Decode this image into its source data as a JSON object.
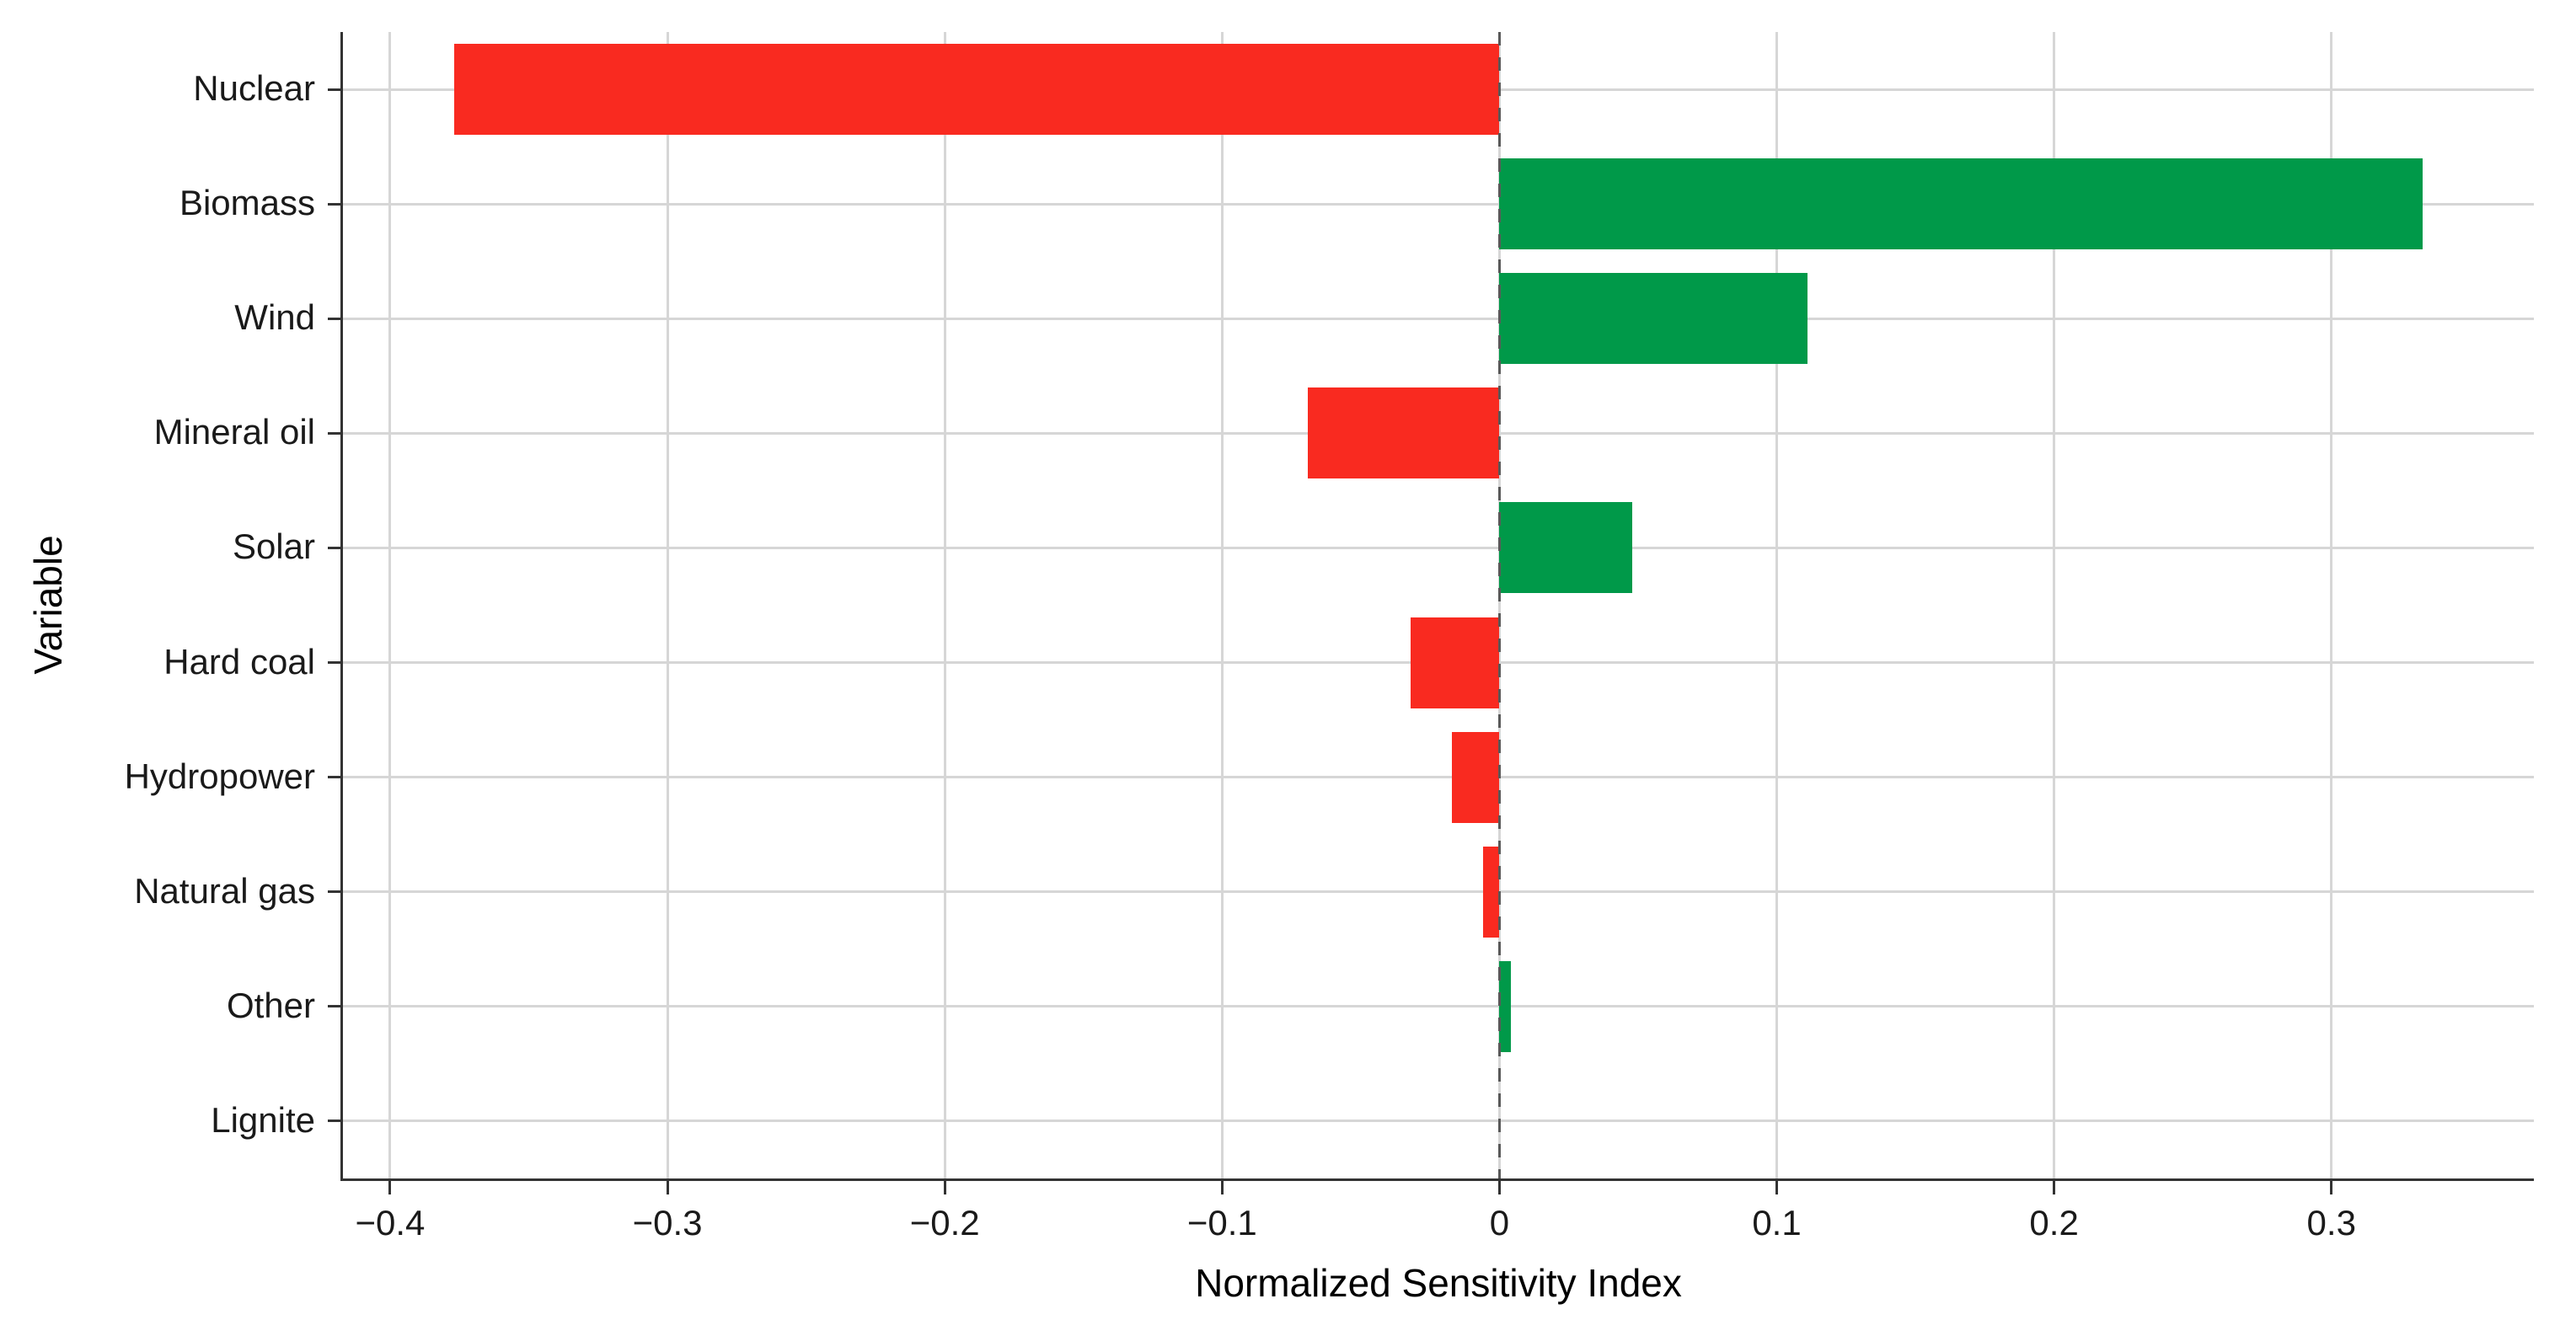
{
  "chart_data": {
    "type": "bar",
    "orientation": "horizontal",
    "xlabel": "Normalized Sensitivity Index",
    "ylabel": "Variable",
    "categories": [
      "Nuclear",
      "Biomass",
      "Wind",
      "Mineral oil",
      "Solar",
      "Hard coal",
      "Hydropower",
      "Natural gas",
      "Other",
      "Lignite"
    ],
    "values": [
      -0.377,
      0.333,
      0.111,
      -0.069,
      0.048,
      -0.032,
      -0.017,
      -0.006,
      0.004,
      0.0
    ],
    "x_ticks": [
      -0.4,
      -0.3,
      -0.2,
      -0.1,
      0,
      0.1,
      0.2,
      0.3
    ],
    "x_tick_labels": [
      "−0.4",
      "−0.3",
      "−0.2",
      "−0.1",
      "0",
      "0.1",
      "0.2",
      "0.3"
    ],
    "xlim": [
      -0.417,
      0.373
    ],
    "zero_line": 0,
    "grid": true,
    "legend": "none",
    "colors": {
      "positive": "#009949",
      "negative": "#f92a20",
      "gridline": "#d6d6d6",
      "axis_line": "#333333",
      "tick_text": "#1a1a1a",
      "title_text": "#000000",
      "zero_dash": "#595959",
      "background": "#ffffff"
    }
  }
}
